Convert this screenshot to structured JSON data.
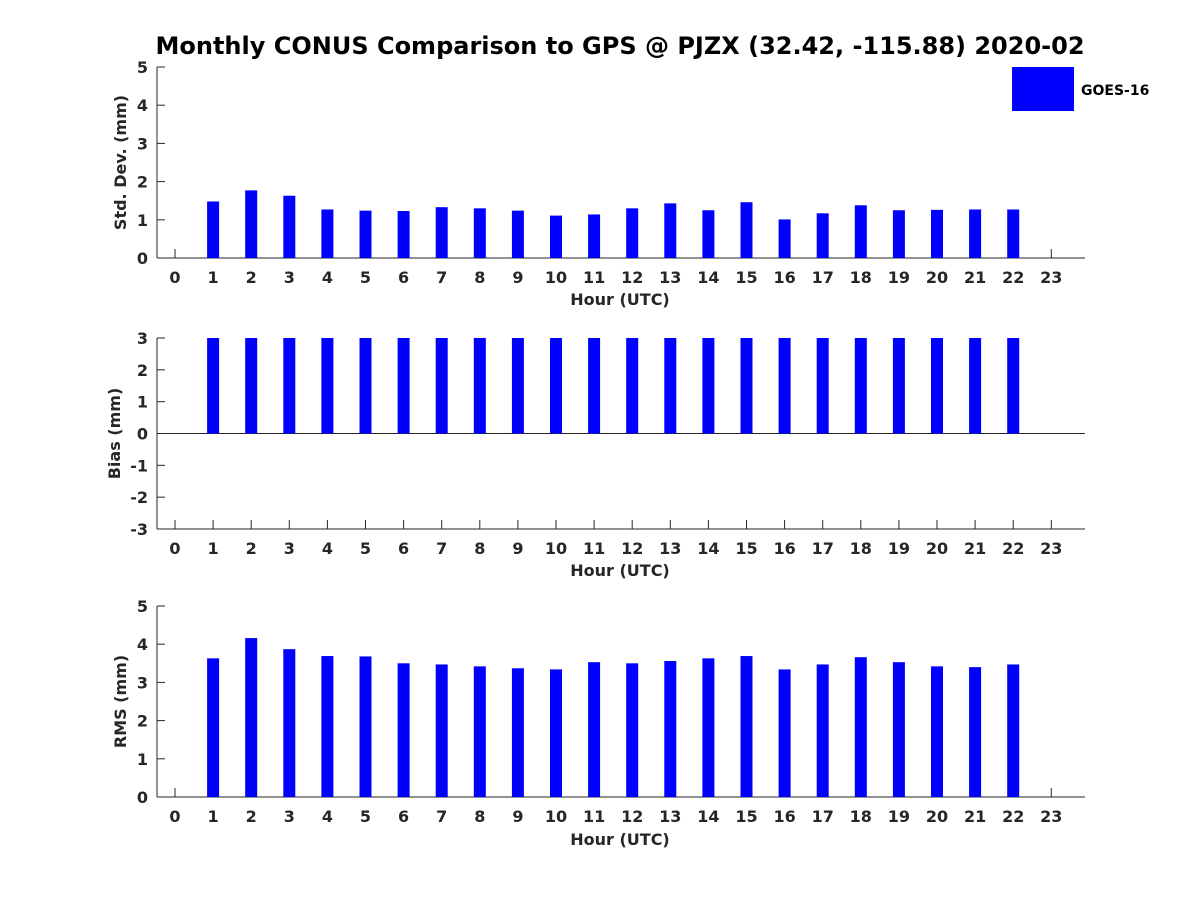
{
  "figure": {
    "title": "Monthly CONUS Comparison to GPS @ PJZX (32.42, -115.88) 2020-02",
    "legend_label": "GOES-16",
    "series_color": "#0000ff"
  },
  "chart_data": [
    {
      "type": "bar",
      "ylabel": "Std. Dev. (mm)",
      "xlabel": "Hour (UTC)",
      "ylim": [
        0,
        5
      ],
      "yticks": [
        "0",
        "1",
        "2",
        "3",
        "4",
        "5"
      ],
      "series": [
        {
          "name": "GOES-16",
          "x": [
            1,
            2,
            3,
            4,
            5,
            6,
            7,
            8,
            9,
            10,
            11,
            12,
            13,
            14,
            15,
            16,
            17,
            18,
            19,
            20,
            21,
            22
          ],
          "values": [
            1.48,
            1.77,
            1.63,
            1.27,
            1.24,
            1.23,
            1.33,
            1.3,
            1.24,
            1.11,
            1.14,
            1.3,
            1.43,
            1.25,
            1.46,
            1.01,
            1.17,
            1.38,
            1.25,
            1.26,
            1.27,
            1.27
          ]
        }
      ]
    },
    {
      "type": "bar",
      "ylabel": "Bias (mm)",
      "xlabel": "Hour (UTC)",
      "ylim": [
        -3,
        3
      ],
      "yticks": [
        "-3",
        "-2",
        "-1",
        "0",
        "1",
        "2",
        "3"
      ],
      "series": [
        {
          "name": "GOES-16",
          "x": [
            1,
            2,
            3,
            4,
            5,
            6,
            7,
            8,
            9,
            10,
            11,
            12,
            13,
            14,
            15,
            16,
            17,
            18,
            19,
            20,
            21,
            22
          ],
          "values": [
            3,
            3,
            3,
            3,
            3,
            3,
            3,
            3,
            3,
            3,
            3,
            3,
            3,
            3,
            3,
            3,
            3,
            3,
            3,
            3,
            3,
            3
          ]
        }
      ]
    },
    {
      "type": "bar",
      "ylabel": "RMS (mm)",
      "xlabel": "Hour (UTC)",
      "ylim": [
        0,
        5
      ],
      "yticks": [
        "0",
        "1",
        "2",
        "3",
        "4",
        "5"
      ],
      "series": [
        {
          "name": "GOES-16",
          "x": [
            1,
            2,
            3,
            4,
            5,
            6,
            7,
            8,
            9,
            10,
            11,
            12,
            13,
            14,
            15,
            16,
            17,
            18,
            19,
            20,
            21,
            22
          ],
          "values": [
            3.63,
            4.16,
            3.87,
            3.69,
            3.68,
            3.5,
            3.47,
            3.42,
            3.37,
            3.34,
            3.53,
            3.5,
            3.56,
            3.63,
            3.69,
            3.34,
            3.47,
            3.66,
            3.53,
            3.42,
            3.4,
            3.47
          ]
        }
      ]
    }
  ],
  "xaxis": {
    "ticks": [
      "0",
      "1",
      "2",
      "3",
      "4",
      "5",
      "6",
      "7",
      "8",
      "9",
      "10",
      "11",
      "12",
      "13",
      "14",
      "15",
      "16",
      "17",
      "18",
      "19",
      "20",
      "21",
      "22",
      "23"
    ]
  }
}
